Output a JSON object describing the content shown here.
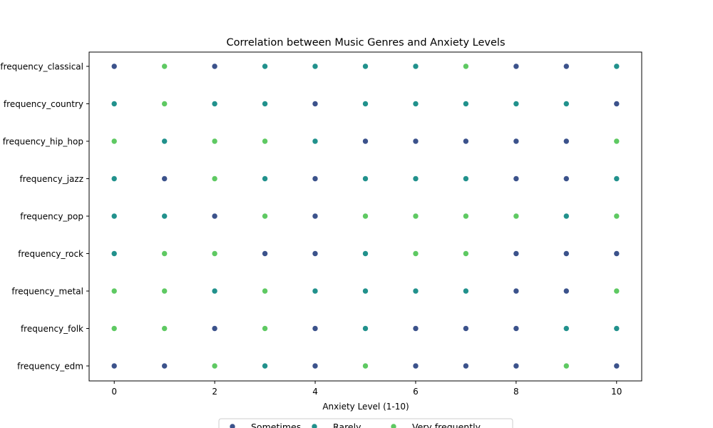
{
  "chart_data": {
    "type": "scatter",
    "title": "Correlation between Music Genres and Anxiety Levels",
    "xlabel": "Anxiety Level (1-10)",
    "ylabel": "",
    "xlim": [
      -0.5,
      10.5
    ],
    "xticks": [
      0,
      2,
      4,
      6,
      8,
      10
    ],
    "categories": [
      "frequency_classical",
      "frequency_country",
      "frequency_hip_hop",
      "frequency_jazz",
      "frequency_pop",
      "frequency_rock",
      "frequency_metal",
      "frequency_folk",
      "frequency_edm"
    ],
    "x": [
      0,
      1,
      2,
      3,
      4,
      5,
      6,
      7,
      8,
      9,
      10
    ],
    "legend_placement": "bottom-center",
    "grid": false,
    "series": [
      {
        "name": "Sometimes",
        "color": "#3b528b"
      },
      {
        "name": "Rarely",
        "color": "#21918c"
      },
      {
        "name": "Very frequently",
        "color": "#5ec962"
      }
    ],
    "rows": [
      [
        "Sometimes",
        "Very frequently",
        "Sometimes",
        "Rarely",
        "Rarely",
        "Rarely",
        "Rarely",
        "Very frequently",
        "Sometimes",
        "Sometimes",
        "Rarely"
      ],
      [
        "Rarely",
        "Very frequently",
        "Rarely",
        "Rarely",
        "Sometimes",
        "Rarely",
        "Rarely",
        "Rarely",
        "Rarely",
        "Rarely",
        "Sometimes"
      ],
      [
        "Very frequently",
        "Rarely",
        "Very frequently",
        "Very frequently",
        "Rarely",
        "Sometimes",
        "Sometimes",
        "Sometimes",
        "Sometimes",
        "Sometimes",
        "Very frequently"
      ],
      [
        "Rarely",
        "Sometimes",
        "Very frequently",
        "Rarely",
        "Sometimes",
        "Rarely",
        "Rarely",
        "Rarely",
        "Sometimes",
        "Sometimes",
        "Rarely"
      ],
      [
        "Rarely",
        "Rarely",
        "Sometimes",
        "Very frequently",
        "Sometimes",
        "Very frequently",
        "Very frequently",
        "Very frequently",
        "Very frequently",
        "Rarely",
        "Very frequently"
      ],
      [
        "Rarely",
        "Very frequently",
        "Very frequently",
        "Sometimes",
        "Sometimes",
        "Rarely",
        "Very frequently",
        "Very frequently",
        "Sometimes",
        "Sometimes",
        "Sometimes"
      ],
      [
        "Very frequently",
        "Very frequently",
        "Rarely",
        "Very frequently",
        "Rarely",
        "Rarely",
        "Rarely",
        "Rarely",
        "Sometimes",
        "Sometimes",
        "Very frequently"
      ],
      [
        "Very frequently",
        "Very frequently",
        "Sometimes",
        "Very frequently",
        "Sometimes",
        "Rarely",
        "Sometimes",
        "Sometimes",
        "Sometimes",
        "Rarely",
        "Rarely"
      ],
      [
        "Sometimes",
        "Sometimes",
        "Very frequently",
        "Rarely",
        "Sometimes",
        "Very frequently",
        "Sometimes",
        "Sometimes",
        "Sometimes",
        "Very frequently",
        "Sometimes"
      ]
    ]
  }
}
